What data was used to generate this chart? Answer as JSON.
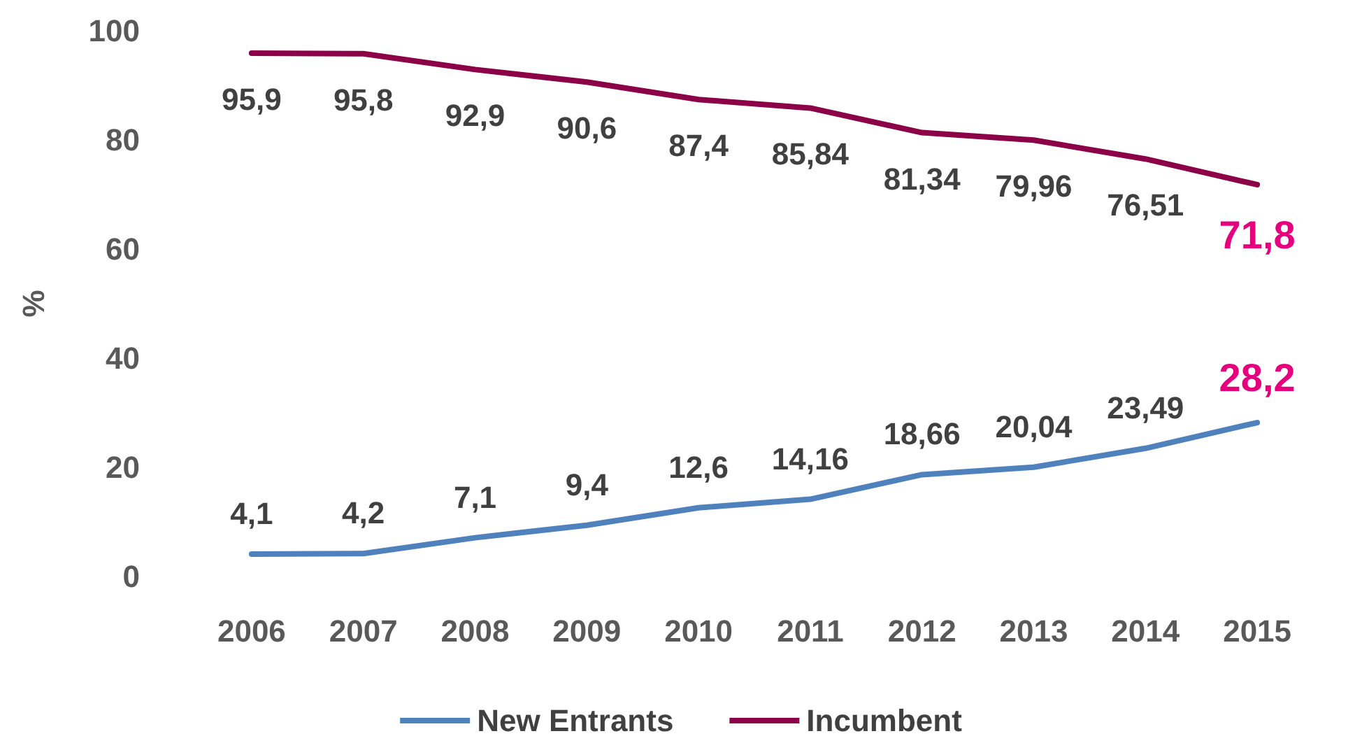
{
  "chart_data": {
    "type": "line",
    "ylabel": "%",
    "categories": [
      "2006",
      "2007",
      "2008",
      "2009",
      "2010",
      "2011",
      "2012",
      "2013",
      "2014",
      "2015"
    ],
    "series": [
      {
        "name": "New Entrants",
        "color": "#4f81bd",
        "values": [
          4.1,
          4.2,
          7.1,
          9.4,
          12.6,
          14.16,
          18.66,
          20.04,
          23.49,
          28.2
        ],
        "value_labels": [
          "4,1",
          "4,2",
          "7,1",
          "9,4",
          "12,6",
          "14,16",
          "18,66",
          "20,04",
          "23,49",
          "28,2"
        ]
      },
      {
        "name": "Incumbent",
        "color": "#8b0046",
        "values": [
          95.9,
          95.8,
          92.9,
          90.6,
          87.4,
          85.84,
          81.34,
          79.96,
          76.51,
          71.8
        ],
        "value_labels": [
          "95,9",
          "95,8",
          "92,9",
          "90,6",
          "87,4",
          "85,84",
          "81,34",
          "79,96",
          "76,51",
          "71,8"
        ]
      }
    ],
    "ylim": [
      0,
      100
    ],
    "yticks": [
      0,
      20,
      40,
      60,
      80,
      100
    ],
    "grid": false,
    "legend": "bottom",
    "marker": "none",
    "line_style": "solid"
  }
}
